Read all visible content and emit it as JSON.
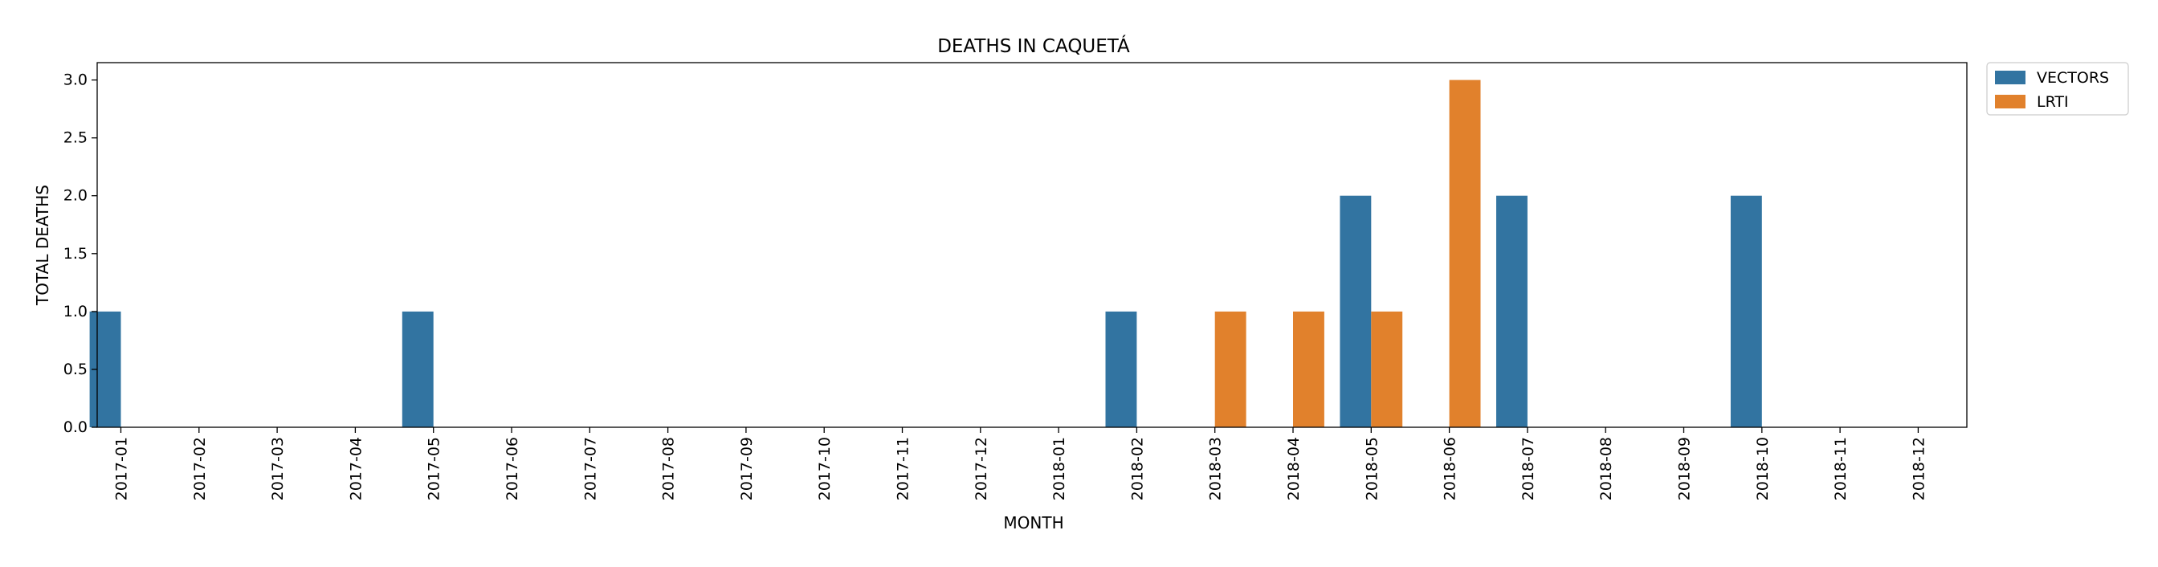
{
  "chart_data": {
    "type": "bar",
    "title": "DEATHS IN CAQUETÁ",
    "xlabel": "MONTH",
    "ylabel": "TOTAL DEATHS",
    "ylim": [
      0,
      3.15
    ],
    "yticks": [
      "0.0",
      "0.5",
      "1.0",
      "1.5",
      "2.0",
      "2.5",
      "3.0"
    ],
    "grid": false,
    "legend_position": "outside-top-right",
    "categories": [
      "2017-01",
      "2017-02",
      "2017-03",
      "2017-04",
      "2017-05",
      "2017-06",
      "2017-07",
      "2017-08",
      "2017-09",
      "2017-10",
      "2017-11",
      "2017-12",
      "2018-01",
      "2018-02",
      "2018-03",
      "2018-04",
      "2018-05",
      "2018-06",
      "2018-07",
      "2018-08",
      "2018-09",
      "2018-10",
      "2018-11",
      "2018-12"
    ],
    "series": [
      {
        "name": "VECTORS",
        "color": "#3274a1",
        "values": [
          1,
          0,
          0,
          0,
          1,
          0,
          0,
          0,
          0,
          0,
          0,
          0,
          0,
          1,
          0,
          0,
          2,
          0,
          2,
          0,
          0,
          2,
          0,
          0
        ]
      },
      {
        "name": "LRTI",
        "color": "#e1812c",
        "values": [
          0,
          0,
          0,
          0,
          0,
          0,
          0,
          0,
          0,
          0,
          0,
          0,
          0,
          0,
          1,
          1,
          1,
          3,
          0,
          0,
          0,
          0,
          0,
          0
        ]
      }
    ]
  }
}
